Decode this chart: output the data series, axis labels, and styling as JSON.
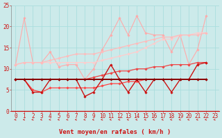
{
  "background_color": "#cceaea",
  "xlabel": "Vent moyen/en rafales ( km/h )",
  "xlim": [
    -0.5,
    23.5
  ],
  "ylim": [
    0,
    25
  ],
  "yticks": [
    0,
    5,
    10,
    15,
    20,
    25
  ],
  "xticks": [
    0,
    1,
    2,
    3,
    4,
    5,
    6,
    7,
    8,
    9,
    10,
    11,
    12,
    13,
    14,
    15,
    16,
    17,
    18,
    19,
    20,
    21,
    22,
    23
  ],
  "grid_color": "#aadddd",
  "lines": [
    {
      "y": [
        11,
        22,
        11.5,
        11.5,
        14,
        10.5,
        11,
        11,
        7.5,
        10,
        14.5,
        18,
        22,
        18,
        22.5,
        18.5,
        18,
        18,
        14,
        18,
        11,
        14.5,
        22.5
      ],
      "color": "#ffaaaa",
      "lw": 0.8,
      "marker": "D",
      "ms": 1.8,
      "zorder": 3
    },
    {
      "y": [
        11,
        11.5,
        11.5,
        11.5,
        11.5,
        11.5,
        11.5,
        11.5,
        11.5,
        11.5,
        12,
        12.5,
        13,
        13.5,
        14,
        15,
        16,
        17,
        17,
        18,
        18,
        18.5,
        18.5
      ],
      "color": "#ffcccc",
      "lw": 0.9,
      "marker": "D",
      "ms": 1.8,
      "zorder": 3
    },
    {
      "y": [
        11,
        11.5,
        11.5,
        11.5,
        12,
        12.5,
        13,
        13.5,
        13.5,
        13.5,
        14,
        14.5,
        15,
        15.5,
        16,
        16.5,
        17,
        17.5,
        17.5,
        18,
        18,
        18,
        18.5
      ],
      "color": "#ffbbbb",
      "lw": 0.9,
      "marker": "D",
      "ms": 1.8,
      "zorder": 3
    },
    {
      "y": [
        7.5,
        7.5,
        7.5,
        7.5,
        7.5,
        7.5,
        7.5,
        7.5,
        7.5,
        8,
        8.5,
        9,
        9.5,
        9.5,
        10,
        10,
        10.5,
        10.5,
        11,
        11,
        11,
        11.5,
        11.5
      ],
      "color": "#ee4444",
      "lw": 0.9,
      "marker": "D",
      "ms": 1.8,
      "zorder": 4
    },
    {
      "y": [
        7.5,
        7.5,
        4.5,
        4.5,
        7.5,
        7.5,
        7.5,
        7.5,
        3.5,
        4.5,
        7.5,
        11,
        7.5,
        4.5,
        7.5,
        4.5,
        7.5,
        7.5,
        4.5,
        7.5,
        7.5,
        11,
        11.5
      ],
      "color": "#cc1111",
      "lw": 1.0,
      "marker": "D",
      "ms": 1.8,
      "zorder": 5
    },
    {
      "y": [
        7.5,
        7.5,
        7.5,
        7.5,
        7.5,
        7.5,
        7.5,
        7.5,
        7.5,
        7.5,
        7.5,
        7.5,
        7.5,
        7.5,
        7.5,
        7.5,
        7.5,
        7.5,
        7.5,
        7.5,
        7.5,
        7.5,
        7.5
      ],
      "color": "#880000",
      "lw": 1.4,
      "marker": "D",
      "ms": 1.8,
      "zorder": 6
    },
    {
      "y": [
        7.5,
        7.5,
        5,
        4.5,
        5.5,
        5.5,
        5.5,
        5.5,
        5.5,
        5.5,
        6,
        6.5,
        6.5,
        7,
        7,
        7.5,
        7.5,
        7.5,
        7.5,
        7.5,
        7.5,
        7.5,
        7.5
      ],
      "color": "#ff4444",
      "lw": 0.9,
      "marker": "D",
      "ms": 1.8,
      "zorder": 4
    }
  ],
  "arrow_color": "#cc2222",
  "xlabel_fontsize": 6.5,
  "tick_fontsize": 5.5,
  "xlabel_color": "#cc1111",
  "tick_color": "#cc1111",
  "spine_color": "#cc1111"
}
